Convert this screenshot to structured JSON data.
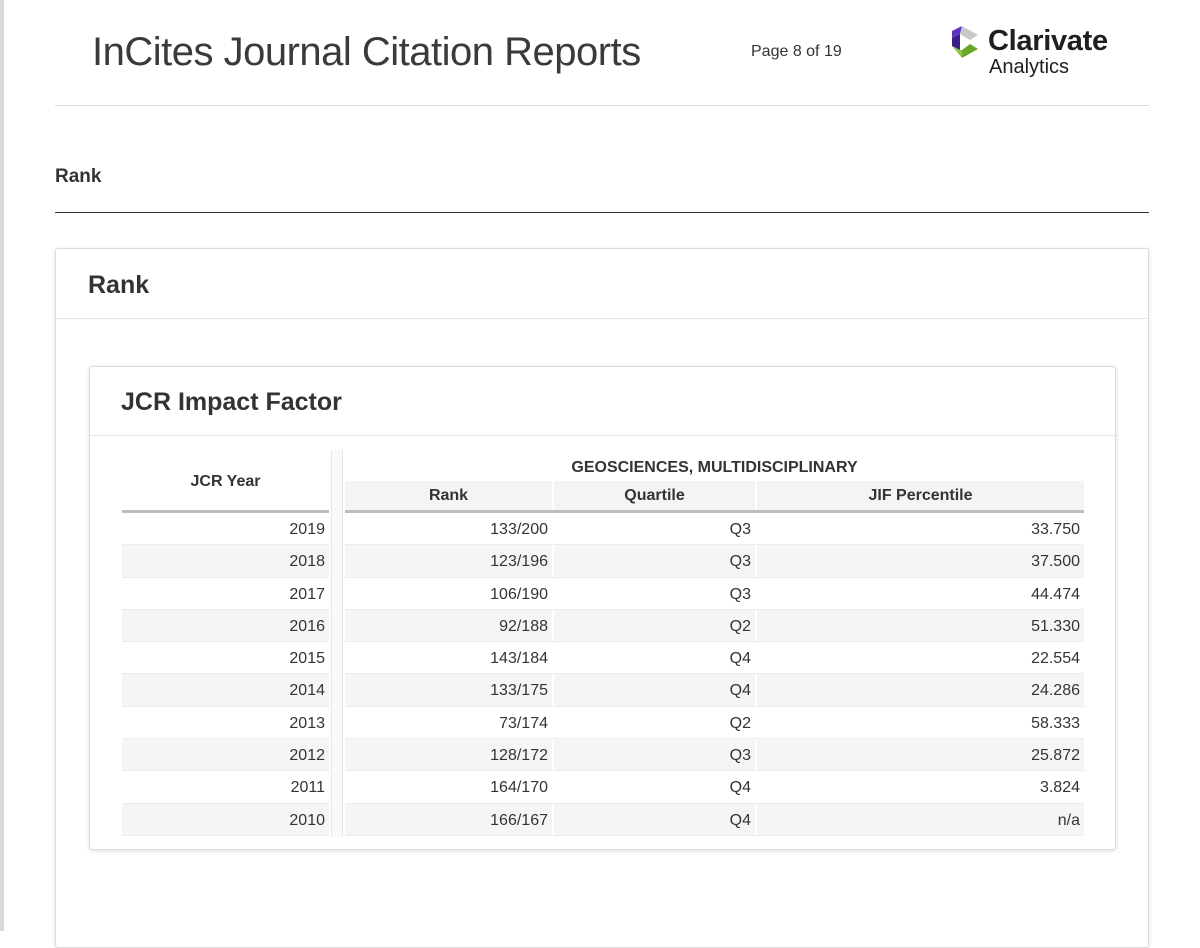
{
  "header": {
    "title": "InCites Journal Citation Reports",
    "page_indicator": "Page 8 of 19",
    "logo": {
      "name": "Clarivate",
      "sub": "Analytics",
      "colors": [
        "#5e33bf",
        "#d0d0d0",
        "#8dc63f"
      ]
    }
  },
  "section": {
    "heading": "Rank"
  },
  "rank_panel": {
    "title": "Rank"
  },
  "jcr_panel": {
    "title": "JCR Impact Factor",
    "year_header": "JCR Year",
    "category_header": "GEOSCIENCES, MULTIDISCIPLINARY",
    "columns": [
      "Rank",
      "Quartile",
      "JIF Percentile"
    ],
    "rows": [
      {
        "year": "2019",
        "rank": "133/200",
        "quartile": "Q3",
        "percentile": "33.750"
      },
      {
        "year": "2018",
        "rank": "123/196",
        "quartile": "Q3",
        "percentile": "37.500"
      },
      {
        "year": "2017",
        "rank": "106/190",
        "quartile": "Q3",
        "percentile": "44.474"
      },
      {
        "year": "2016",
        "rank": "92/188",
        "quartile": "Q2",
        "percentile": "51.330"
      },
      {
        "year": "2015",
        "rank": "143/184",
        "quartile": "Q4",
        "percentile": "22.554"
      },
      {
        "year": "2014",
        "rank": "133/175",
        "quartile": "Q4",
        "percentile": "24.286"
      },
      {
        "year": "2013",
        "rank": "73/174",
        "quartile": "Q2",
        "percentile": "58.333"
      },
      {
        "year": "2012",
        "rank": "128/172",
        "quartile": "Q3",
        "percentile": "25.872"
      },
      {
        "year": "2011",
        "rank": "164/170",
        "quartile": "Q4",
        "percentile": "3.824"
      },
      {
        "year": "2010",
        "rank": "166/167",
        "quartile": "Q4",
        "percentile": "n/a"
      }
    ]
  }
}
